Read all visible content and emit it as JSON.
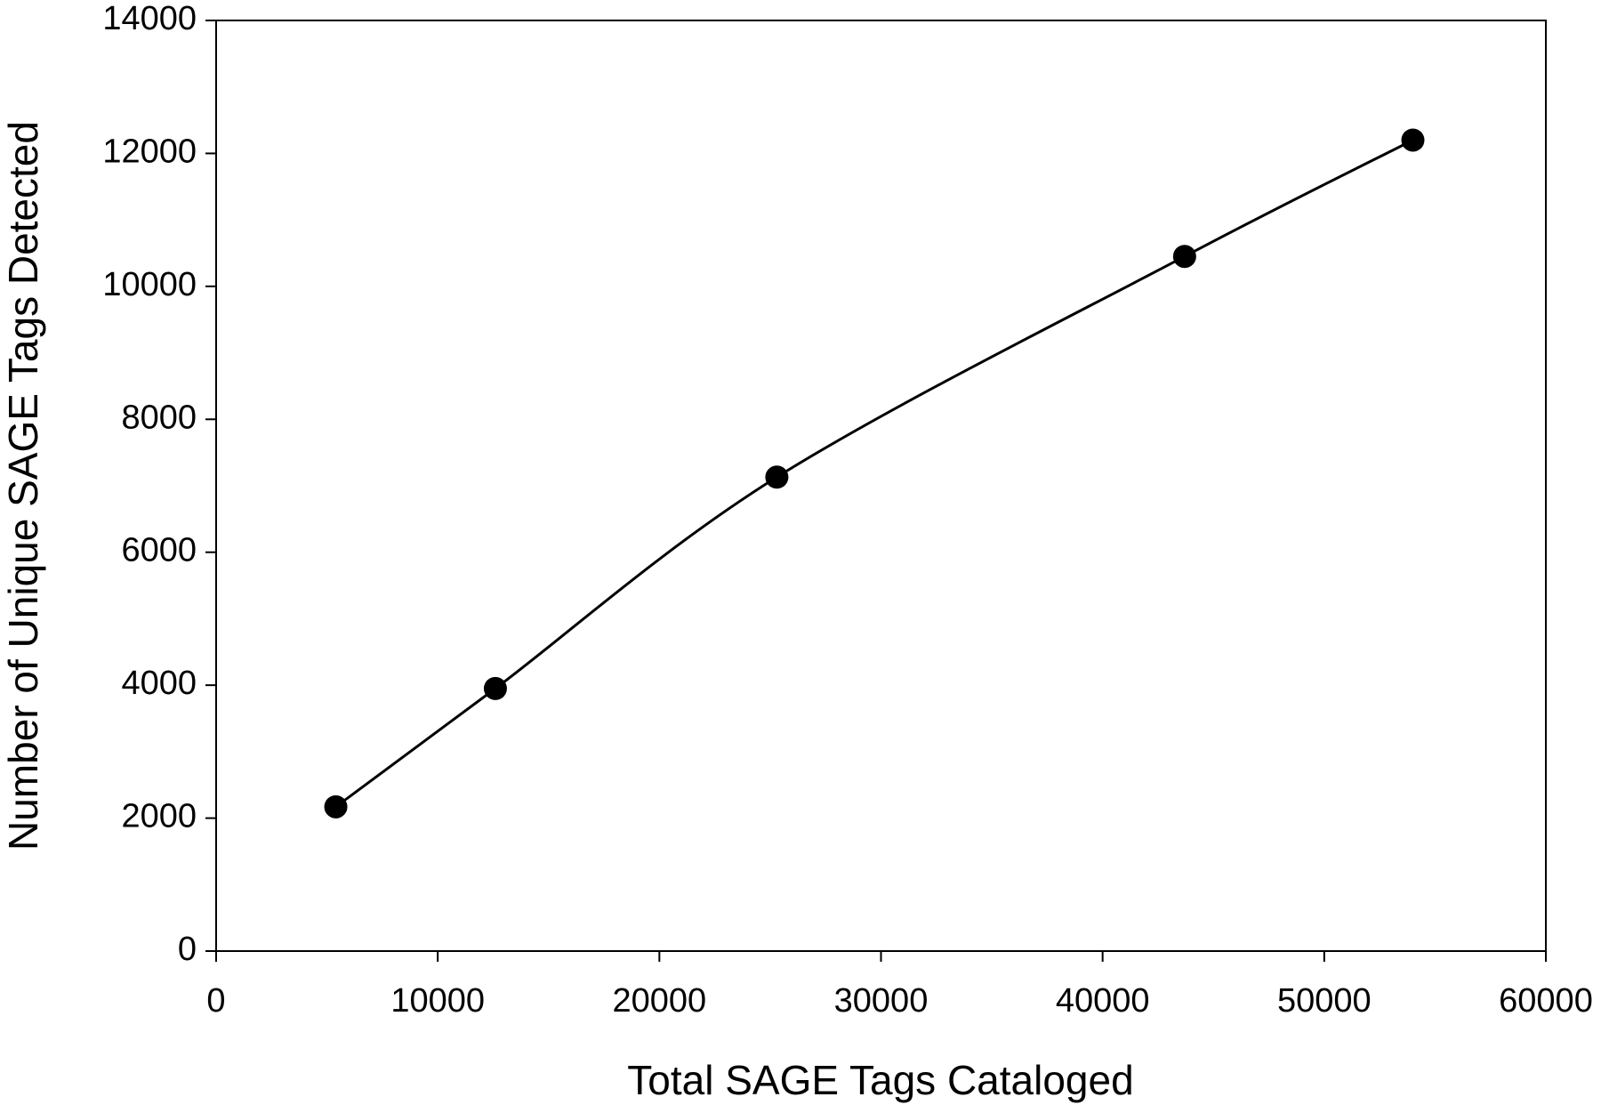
{
  "chart_data": {
    "type": "line",
    "x_label": "Total SAGE Tags Cataloged",
    "y_label": "Number of Unique SAGE Tags Detected",
    "x": [
      5400,
      12600,
      25300,
      43700,
      54000
    ],
    "series": [
      {
        "color": "#000000",
        "values": [
          2170,
          3950,
          7130,
          10450,
          12200
        ]
      }
    ],
    "xlim": [
      0,
      60000
    ],
    "xticks": [
      0,
      10000,
      20000,
      30000,
      40000,
      50000,
      60000
    ],
    "ylim": [
      0,
      14000
    ],
    "yticks": [
      0,
      2000,
      4000,
      6000,
      8000,
      10000,
      12000,
      14000
    ],
    "grid": false,
    "smooth": true,
    "markers": true
  }
}
